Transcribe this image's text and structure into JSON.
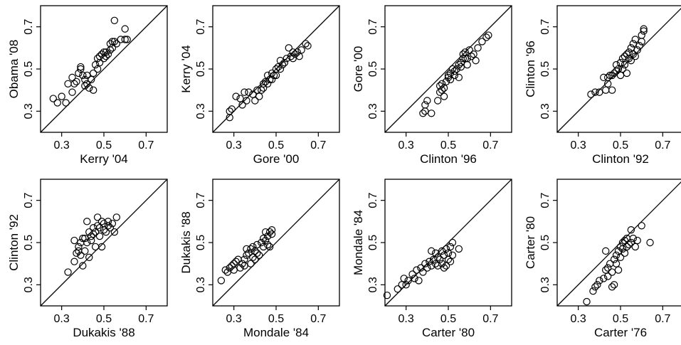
{
  "chart_data": [
    {
      "type": "scatter",
      "xlabel": "Kerry '04",
      "ylabel": "Obama '08",
      "xlim": [
        0.2,
        0.8
      ],
      "ylim": [
        0.2,
        0.8
      ],
      "xticks": [
        "0.3",
        "0.5",
        "0.7"
      ],
      "yticks": [
        "0.3",
        "0.5",
        "0.7"
      ],
      "reference_line": "y = x",
      "points": [
        [
          0.26,
          0.36
        ],
        [
          0.28,
          0.34
        ],
        [
          0.3,
          0.37
        ],
        [
          0.32,
          0.34
        ],
        [
          0.33,
          0.43
        ],
        [
          0.35,
          0.39
        ],
        [
          0.35,
          0.46
        ],
        [
          0.36,
          0.43
        ],
        [
          0.37,
          0.44
        ],
        [
          0.38,
          0.48
        ],
        [
          0.39,
          0.5
        ],
        [
          0.39,
          0.51
        ],
        [
          0.4,
          0.47
        ],
        [
          0.41,
          0.42
        ],
        [
          0.41,
          0.45
        ],
        [
          0.42,
          0.43
        ],
        [
          0.42,
          0.47
        ],
        [
          0.43,
          0.41
        ],
        [
          0.44,
          0.45
        ],
        [
          0.45,
          0.4
        ],
        [
          0.45,
          0.48
        ],
        [
          0.46,
          0.52
        ],
        [
          0.47,
          0.5
        ],
        [
          0.47,
          0.55
        ],
        [
          0.48,
          0.53
        ],
        [
          0.48,
          0.56
        ],
        [
          0.49,
          0.57
        ],
        [
          0.5,
          0.55
        ],
        [
          0.5,
          0.58
        ],
        [
          0.51,
          0.56
        ],
        [
          0.51,
          0.58
        ],
        [
          0.52,
          0.57
        ],
        [
          0.53,
          0.59
        ],
        [
          0.53,
          0.62
        ],
        [
          0.54,
          0.6
        ],
        [
          0.54,
          0.63
        ],
        [
          0.55,
          0.63
        ],
        [
          0.55,
          0.73
        ],
        [
          0.56,
          0.62
        ],
        [
          0.58,
          0.64
        ],
        [
          0.6,
          0.64
        ],
        [
          0.6,
          0.69
        ],
        [
          0.61,
          0.64
        ]
      ]
    },
    {
      "type": "scatter",
      "xlabel": "Gore '00",
      "ylabel": "Kerry '04",
      "xlim": [
        0.2,
        0.8
      ],
      "ylim": [
        0.2,
        0.8
      ],
      "xticks": [
        "0.3",
        "0.5",
        "0.7"
      ],
      "yticks": [
        "0.3",
        "0.5",
        "0.7"
      ],
      "reference_line": "y = x",
      "points": [
        [
          0.28,
          0.27
        ],
        [
          0.28,
          0.3
        ],
        [
          0.29,
          0.31
        ],
        [
          0.31,
          0.37
        ],
        [
          0.33,
          0.36
        ],
        [
          0.34,
          0.33
        ],
        [
          0.35,
          0.39
        ],
        [
          0.36,
          0.35
        ],
        [
          0.37,
          0.39
        ],
        [
          0.39,
          0.38
        ],
        [
          0.4,
          0.35
        ],
        [
          0.41,
          0.4
        ],
        [
          0.42,
          0.37
        ],
        [
          0.43,
          0.4
        ],
        [
          0.44,
          0.43
        ],
        [
          0.44,
          0.41
        ],
        [
          0.45,
          0.44
        ],
        [
          0.46,
          0.43
        ],
        [
          0.46,
          0.47
        ],
        [
          0.47,
          0.45
        ],
        [
          0.48,
          0.45
        ],
        [
          0.48,
          0.48
        ],
        [
          0.49,
          0.47
        ],
        [
          0.5,
          0.47
        ],
        [
          0.5,
          0.5
        ],
        [
          0.51,
          0.51
        ],
        [
          0.52,
          0.5
        ],
        [
          0.52,
          0.54
        ],
        [
          0.53,
          0.52
        ],
        [
          0.54,
          0.53
        ],
        [
          0.55,
          0.55
        ],
        [
          0.56,
          0.6
        ],
        [
          0.57,
          0.56
        ],
        [
          0.58,
          0.55
        ],
        [
          0.58,
          0.58
        ],
        [
          0.59,
          0.57
        ],
        [
          0.6,
          0.58
        ],
        [
          0.61,
          0.56
        ],
        [
          0.62,
          0.59
        ],
        [
          0.64,
          0.62
        ],
        [
          0.65,
          0.61
        ]
      ]
    },
    {
      "type": "scatter",
      "xlabel": "Clinton '96",
      "ylabel": "Gore '00",
      "xlim": [
        0.2,
        0.8
      ],
      "ylim": [
        0.2,
        0.8
      ],
      "xticks": [
        "0.3",
        "0.5",
        "0.7"
      ],
      "yticks": [
        "0.3",
        "0.5",
        "0.7"
      ],
      "reference_line": "y = x",
      "points": [
        [
          0.38,
          0.29
        ],
        [
          0.39,
          0.3
        ],
        [
          0.39,
          0.33
        ],
        [
          0.4,
          0.35
        ],
        [
          0.42,
          0.29
        ],
        [
          0.45,
          0.35
        ],
        [
          0.46,
          0.39
        ],
        [
          0.46,
          0.42
        ],
        [
          0.47,
          0.4
        ],
        [
          0.47,
          0.43
        ],
        [
          0.48,
          0.37
        ],
        [
          0.48,
          0.41
        ],
        [
          0.49,
          0.44
        ],
        [
          0.5,
          0.46
        ],
        [
          0.5,
          0.47
        ],
        [
          0.51,
          0.45
        ],
        [
          0.51,
          0.48
        ],
        [
          0.52,
          0.5
        ],
        [
          0.53,
          0.47
        ],
        [
          0.53,
          0.49
        ],
        [
          0.54,
          0.5
        ],
        [
          0.55,
          0.46
        ],
        [
          0.55,
          0.52
        ],
        [
          0.56,
          0.51
        ],
        [
          0.56,
          0.53
        ],
        [
          0.57,
          0.55
        ],
        [
          0.57,
          0.57
        ],
        [
          0.58,
          0.55
        ],
        [
          0.58,
          0.58
        ],
        [
          0.59,
          0.52
        ],
        [
          0.59,
          0.55
        ],
        [
          0.6,
          0.59
        ],
        [
          0.61,
          0.56
        ],
        [
          0.62,
          0.57
        ],
        [
          0.63,
          0.54
        ],
        [
          0.64,
          0.6
        ],
        [
          0.66,
          0.63
        ],
        [
          0.68,
          0.65
        ],
        [
          0.69,
          0.66
        ]
      ]
    },
    {
      "type": "scatter",
      "xlabel": "Clinton '92",
      "ylabel": "Clinton '96",
      "xlim": [
        0.2,
        0.8
      ],
      "ylim": [
        0.2,
        0.8
      ],
      "xticks": [
        "0.3",
        "0.5",
        "0.7"
      ],
      "yticks": [
        "0.3",
        "0.5",
        "0.7"
      ],
      "reference_line": "y = x",
      "points": [
        [
          0.36,
          0.38
        ],
        [
          0.38,
          0.39
        ],
        [
          0.4,
          0.39
        ],
        [
          0.42,
          0.46
        ],
        [
          0.43,
          0.4
        ],
        [
          0.44,
          0.43
        ],
        [
          0.44,
          0.46
        ],
        [
          0.45,
          0.47
        ],
        [
          0.46,
          0.4
        ],
        [
          0.46,
          0.47
        ],
        [
          0.47,
          0.48
        ],
        [
          0.48,
          0.49
        ],
        [
          0.48,
          0.52
        ],
        [
          0.49,
          0.5
        ],
        [
          0.5,
          0.47
        ],
        [
          0.5,
          0.53
        ],
        [
          0.51,
          0.55
        ],
        [
          0.51,
          0.5
        ],
        [
          0.52,
          0.52
        ],
        [
          0.52,
          0.56
        ],
        [
          0.53,
          0.48
        ],
        [
          0.53,
          0.57
        ],
        [
          0.54,
          0.55
        ],
        [
          0.54,
          0.58
        ],
        [
          0.55,
          0.54
        ],
        [
          0.55,
          0.6
        ],
        [
          0.56,
          0.57
        ],
        [
          0.56,
          0.62
        ],
        [
          0.57,
          0.56
        ],
        [
          0.57,
          0.64
        ],
        [
          0.58,
          0.59
        ],
        [
          0.59,
          0.61
        ],
        [
          0.6,
          0.63
        ],
        [
          0.6,
          0.66
        ],
        [
          0.61,
          0.69
        ],
        [
          0.61,
          0.68
        ]
      ]
    },
    {
      "type": "scatter",
      "xlabel": "Dukakis '88",
      "ylabel": "Clinton '92",
      "xlim": [
        0.2,
        0.8
      ],
      "ylim": [
        0.2,
        0.8
      ],
      "xticks": [
        "0.3",
        "0.5",
        "0.7"
      ],
      "yticks": [
        "0.3",
        "0.5",
        "0.7"
      ],
      "reference_line": "y = x",
      "points": [
        [
          0.33,
          0.36
        ],
        [
          0.36,
          0.41
        ],
        [
          0.36,
          0.51
        ],
        [
          0.37,
          0.45
        ],
        [
          0.38,
          0.46
        ],
        [
          0.38,
          0.48
        ],
        [
          0.39,
          0.44
        ],
        [
          0.39,
          0.5
        ],
        [
          0.4,
          0.52
        ],
        [
          0.4,
          0.39
        ],
        [
          0.41,
          0.46
        ],
        [
          0.41,
          0.52
        ],
        [
          0.42,
          0.5
        ],
        [
          0.42,
          0.6
        ],
        [
          0.43,
          0.43
        ],
        [
          0.43,
          0.55
        ],
        [
          0.44,
          0.51
        ],
        [
          0.44,
          0.53
        ],
        [
          0.45,
          0.54
        ],
        [
          0.45,
          0.57
        ],
        [
          0.46,
          0.48
        ],
        [
          0.46,
          0.55
        ],
        [
          0.47,
          0.58
        ],
        [
          0.47,
          0.62
        ],
        [
          0.48,
          0.53
        ],
        [
          0.48,
          0.57
        ],
        [
          0.49,
          0.6
        ],
        [
          0.49,
          0.48
        ],
        [
          0.5,
          0.56
        ],
        [
          0.5,
          0.59
        ],
        [
          0.51,
          0.55
        ],
        [
          0.52,
          0.58
        ],
        [
          0.52,
          0.6
        ],
        [
          0.53,
          0.57
        ],
        [
          0.54,
          0.59
        ],
        [
          0.55,
          0.55
        ],
        [
          0.56,
          0.62
        ]
      ]
    },
    {
      "type": "scatter",
      "xlabel": "Mondale '84",
      "ylabel": "Dukakis '88",
      "xlim": [
        0.2,
        0.8
      ],
      "ylim": [
        0.2,
        0.8
      ],
      "xticks": [
        "0.3",
        "0.5",
        "0.7"
      ],
      "yticks": [
        "0.3",
        "0.5",
        "0.7"
      ],
      "reference_line": "y = x",
      "points": [
        [
          0.24,
          0.32
        ],
        [
          0.26,
          0.37
        ],
        [
          0.27,
          0.36
        ],
        [
          0.28,
          0.38
        ],
        [
          0.29,
          0.39
        ],
        [
          0.3,
          0.37
        ],
        [
          0.3,
          0.4
        ],
        [
          0.31,
          0.41
        ],
        [
          0.32,
          0.42
        ],
        [
          0.33,
          0.38
        ],
        [
          0.34,
          0.4
        ],
        [
          0.35,
          0.39
        ],
        [
          0.35,
          0.42
        ],
        [
          0.36,
          0.44
        ],
        [
          0.36,
          0.47
        ],
        [
          0.37,
          0.45
        ],
        [
          0.38,
          0.4
        ],
        [
          0.38,
          0.47
        ],
        [
          0.39,
          0.43
        ],
        [
          0.39,
          0.48
        ],
        [
          0.4,
          0.42
        ],
        [
          0.4,
          0.46
        ],
        [
          0.41,
          0.45
        ],
        [
          0.41,
          0.49
        ],
        [
          0.42,
          0.44
        ],
        [
          0.43,
          0.5
        ],
        [
          0.44,
          0.48
        ],
        [
          0.44,
          0.52
        ],
        [
          0.45,
          0.51
        ],
        [
          0.45,
          0.55
        ],
        [
          0.46,
          0.53
        ],
        [
          0.46,
          0.49
        ],
        [
          0.47,
          0.48
        ],
        [
          0.47,
          0.55
        ],
        [
          0.48,
          0.54
        ],
        [
          0.48,
          0.56
        ]
      ]
    },
    {
      "type": "scatter",
      "xlabel": "Carter '80",
      "ylabel": "Mondale '84",
      "xlim": [
        0.2,
        0.8
      ],
      "ylim": [
        0.2,
        0.8
      ],
      "xticks": [
        "0.3",
        "0.5",
        "0.7"
      ],
      "yticks": [
        "0.3",
        "0.5",
        "0.7"
      ],
      "reference_line": "y = x",
      "points": [
        [
          0.21,
          0.25
        ],
        [
          0.26,
          0.28
        ],
        [
          0.28,
          0.3
        ],
        [
          0.29,
          0.33
        ],
        [
          0.3,
          0.3
        ],
        [
          0.31,
          0.32
        ],
        [
          0.33,
          0.35
        ],
        [
          0.34,
          0.33
        ],
        [
          0.35,
          0.37
        ],
        [
          0.36,
          0.32
        ],
        [
          0.37,
          0.38
        ],
        [
          0.38,
          0.36
        ],
        [
          0.39,
          0.4
        ],
        [
          0.4,
          0.38
        ],
        [
          0.41,
          0.41
        ],
        [
          0.42,
          0.39
        ],
        [
          0.42,
          0.46
        ],
        [
          0.43,
          0.42
        ],
        [
          0.44,
          0.4
        ],
        [
          0.44,
          0.45
        ],
        [
          0.45,
          0.43
        ],
        [
          0.45,
          0.39
        ],
        [
          0.46,
          0.42
        ],
        [
          0.47,
          0.4
        ],
        [
          0.47,
          0.46
        ],
        [
          0.48,
          0.38
        ],
        [
          0.48,
          0.44
        ],
        [
          0.49,
          0.39
        ],
        [
          0.49,
          0.47
        ],
        [
          0.5,
          0.42
        ],
        [
          0.5,
          0.45
        ],
        [
          0.51,
          0.41
        ],
        [
          0.51,
          0.48
        ],
        [
          0.52,
          0.44
        ],
        [
          0.52,
          0.5
        ],
        [
          0.55,
          0.47
        ]
      ]
    },
    {
      "type": "scatter",
      "xlabel": "Carter '76",
      "ylabel": "Carter '80",
      "xlim": [
        0.2,
        0.8
      ],
      "ylim": [
        0.2,
        0.8
      ],
      "xticks": [
        "0.3",
        "0.5",
        "0.7"
      ],
      "yticks": [
        "0.3",
        "0.5",
        "0.7"
      ],
      "reference_line": "y = x",
      "points": [
        [
          0.34,
          0.22
        ],
        [
          0.37,
          0.27
        ],
        [
          0.38,
          0.29
        ],
        [
          0.39,
          0.3
        ],
        [
          0.4,
          0.32
        ],
        [
          0.42,
          0.33
        ],
        [
          0.43,
          0.37
        ],
        [
          0.43,
          0.46
        ],
        [
          0.44,
          0.34
        ],
        [
          0.44,
          0.38
        ],
        [
          0.45,
          0.4
        ],
        [
          0.46,
          0.29
        ],
        [
          0.46,
          0.36
        ],
        [
          0.47,
          0.42
        ],
        [
          0.47,
          0.3
        ],
        [
          0.48,
          0.4
        ],
        [
          0.48,
          0.44
        ],
        [
          0.49,
          0.37
        ],
        [
          0.49,
          0.46
        ],
        [
          0.5,
          0.43
        ],
        [
          0.5,
          0.48
        ],
        [
          0.51,
          0.47
        ],
        [
          0.51,
          0.5
        ],
        [
          0.52,
          0.45
        ],
        [
          0.52,
          0.51
        ],
        [
          0.53,
          0.48
        ],
        [
          0.53,
          0.52
        ],
        [
          0.54,
          0.49
        ],
        [
          0.55,
          0.5
        ],
        [
          0.55,
          0.56
        ],
        [
          0.56,
          0.52
        ],
        [
          0.57,
          0.48
        ],
        [
          0.58,
          0.51
        ],
        [
          0.6,
          0.58
        ],
        [
          0.64,
          0.5
        ]
      ]
    }
  ]
}
